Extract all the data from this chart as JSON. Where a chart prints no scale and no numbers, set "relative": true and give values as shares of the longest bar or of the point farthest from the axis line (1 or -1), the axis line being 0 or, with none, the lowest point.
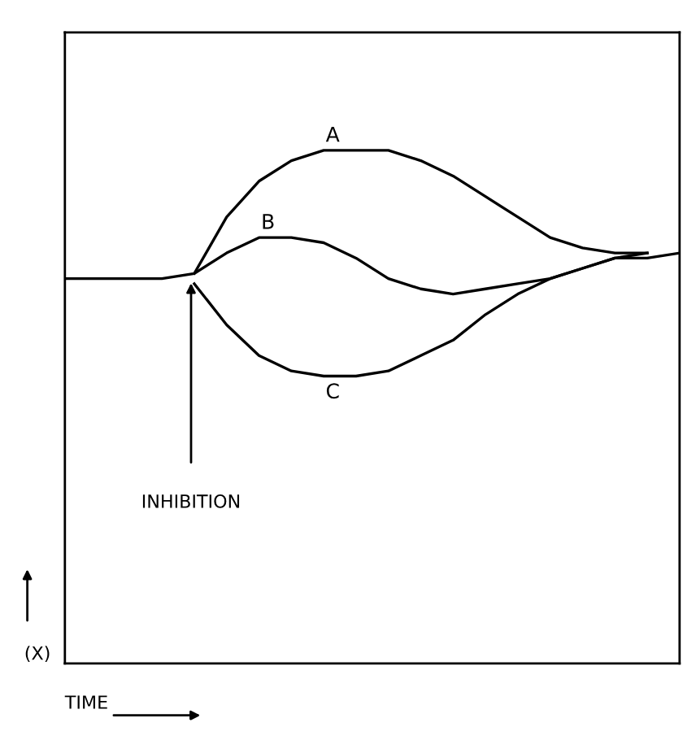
{
  "chart_data": {
    "type": "line",
    "relative": true,
    "xlabel": "TIME",
    "ylabel": "(X)",
    "categories": [
      null,
      null,
      null,
      null,
      null,
      null,
      null,
      null,
      null,
      null,
      null,
      null,
      null,
      null,
      null,
      null,
      null,
      null,
      null,
      null
    ],
    "series": [
      {
        "name": "A",
        "color": "#000000",
        "values": [
          null,
          null,
          null,
          null,
          0.76,
          0.87,
          0.94,
          0.98,
          1.0,
          1.0,
          1.0,
          0.98,
          0.95,
          0.91,
          0.87,
          0.83,
          0.81,
          0.8,
          0.8,
          null
        ]
      },
      {
        "name": "B",
        "color": "#000000",
        "values": [
          0.75,
          0.75,
          0.75,
          0.75,
          0.76,
          0.8,
          0.83,
          0.83,
          0.82,
          0.79,
          0.75,
          0.73,
          0.72,
          0.73,
          0.74,
          0.75,
          0.77,
          0.79,
          0.79,
          0.8
        ]
      },
      {
        "name": "C",
        "color": "#000000",
        "values": [
          null,
          null,
          null,
          null,
          0.74,
          0.66,
          0.6,
          0.57,
          0.56,
          0.56,
          0.57,
          0.6,
          0.63,
          0.68,
          0.72,
          0.75,
          0.77,
          0.79,
          0.8,
          null
        ]
      }
    ],
    "annotations": [
      "INHIBITION"
    ],
    "legend": false,
    "marker": "none",
    "line_style": "solid"
  }
}
